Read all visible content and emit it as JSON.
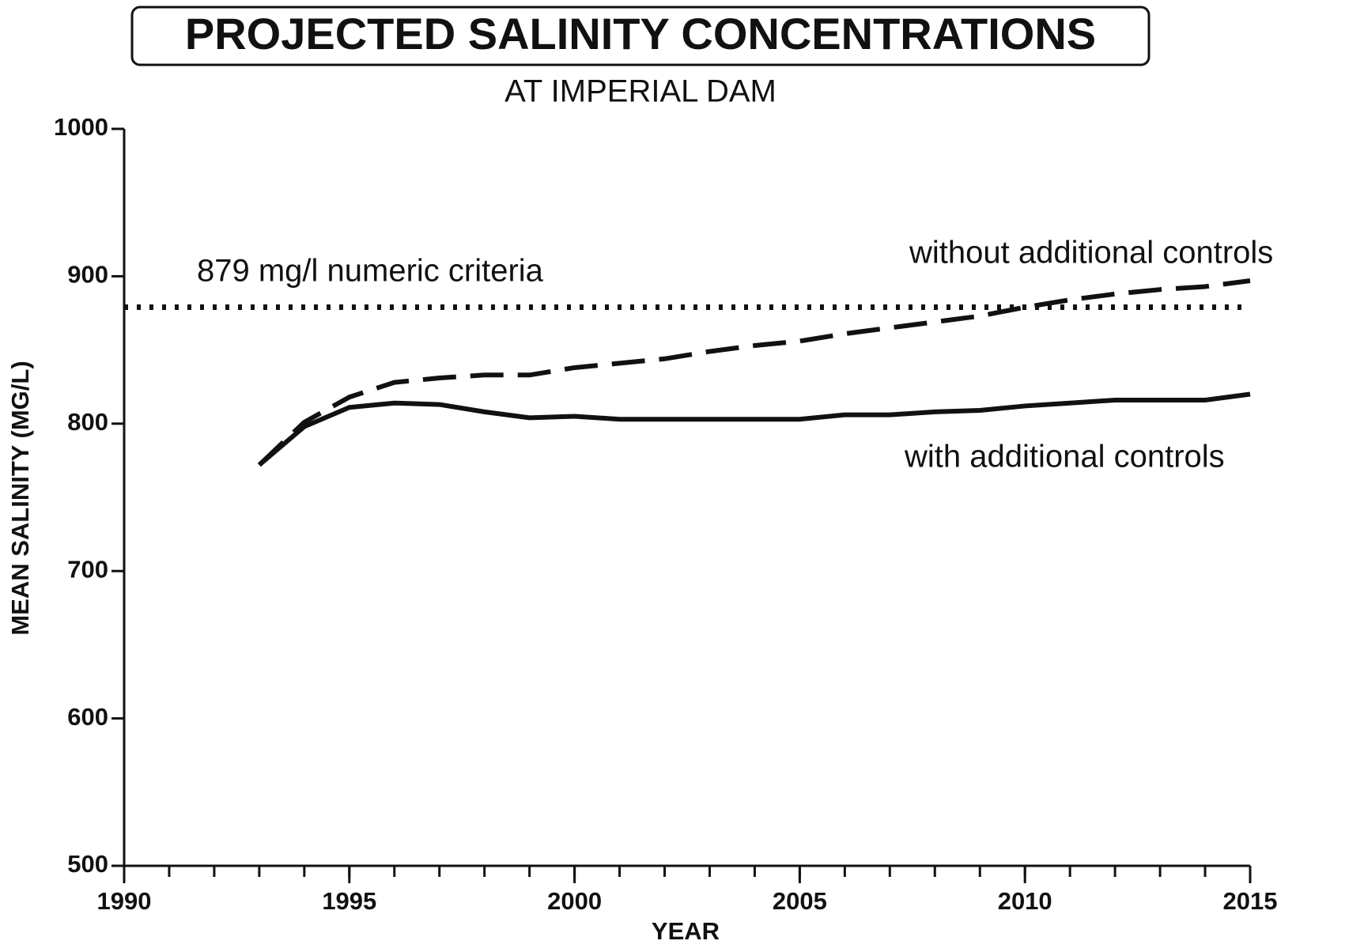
{
  "chart_data": {
    "type": "line",
    "title": "PROJECTED SALINITY CONCENTRATIONS",
    "subtitle": "AT IMPERIAL DAM",
    "x_label": "YEAR",
    "y_label": "MEAN SALINITY (MG/L)",
    "x": [
      1993,
      1994,
      1995,
      1996,
      1997,
      1998,
      1999,
      2000,
      2001,
      2002,
      2003,
      2004,
      2005,
      2006,
      2007,
      2008,
      2009,
      2010,
      2011,
      2012,
      2013,
      2014,
      2015
    ],
    "series": [
      {
        "name": "without additional controls",
        "color": "#111111",
        "dash": "dashed",
        "values": [
          772,
          801,
          818,
          828,
          831,
          833,
          833,
          838,
          841,
          844,
          849,
          853,
          856,
          861,
          865,
          869,
          873,
          879,
          884,
          888,
          891,
          893,
          897
        ]
      },
      {
        "name": "with additional controls",
        "color": "#111111",
        "dash": "solid",
        "values": [
          772,
          798,
          811,
          814,
          813,
          808,
          804,
          805,
          803,
          803,
          803,
          803,
          803,
          806,
          806,
          808,
          809,
          812,
          814,
          816,
          816,
          816,
          820
        ]
      }
    ],
    "reference_line": {
      "label": "879 mg/l numeric criteria",
      "value": 879,
      "x_range": [
        1990,
        2015
      ]
    },
    "xlim": [
      1990,
      2015
    ],
    "xticks": [
      1990,
      1995,
      2000,
      2005,
      2010,
      2015
    ],
    "xticks_minor": [
      1990,
      1991,
      1992,
      1993,
      1994,
      1995,
      1996,
      1997,
      1998,
      1999,
      2000,
      2001,
      2002,
      2003,
      2004,
      2005,
      2006,
      2007,
      2008,
      2009,
      2010,
      2011,
      2012,
      2013,
      2014,
      2015
    ],
    "ylim": [
      500,
      1000
    ],
    "yticks": [
      500,
      600,
      700,
      800,
      900,
      1000
    ],
    "grid": false
  }
}
